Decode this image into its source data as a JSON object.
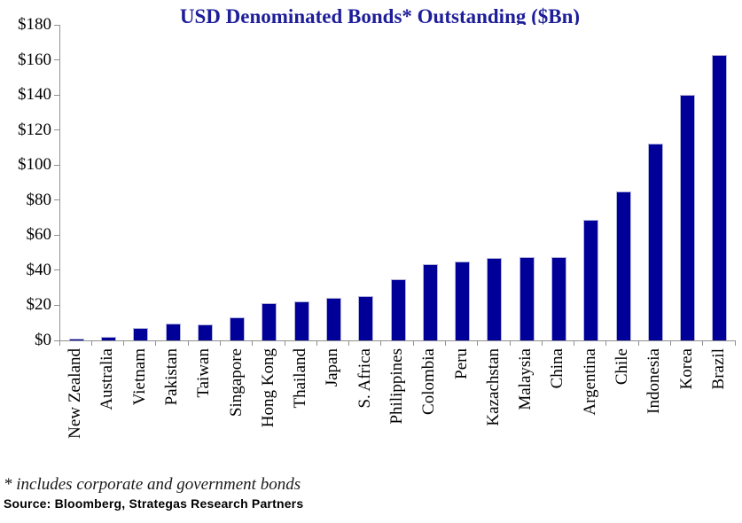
{
  "chart_data": {
    "type": "bar",
    "title": "USD Denominated Bonds* Outstanding ($Bn)",
    "categories": [
      "New Zealand",
      "Australia",
      "Vietnam",
      "Pakistan",
      "Taiwan",
      "Singapore",
      "Hong Kong",
      "Thailand",
      "Japan",
      "S. Africa",
      "Philippines",
      "Colombia",
      "Peru",
      "Kazachstan",
      "Malaysia",
      "China",
      "Argentina",
      "Chile",
      "Indonesia",
      "Korea",
      "Brazil"
    ],
    "values": [
      1,
      2,
      7,
      9.5,
      9,
      13,
      21,
      22,
      24.5,
      25.5,
      35,
      43.5,
      45,
      47,
      47.5,
      47.5,
      69,
      85,
      112,
      140,
      163
    ],
    "xlabel": "",
    "ylabel": "",
    "ylim": [
      0,
      180
    ],
    "ytick_step": 20,
    "ytick_labels": [
      "$0",
      "$20",
      "$40",
      "$60",
      "$80",
      "$100",
      "$120",
      "$140",
      "$160",
      "$180"
    ],
    "grid": false,
    "legend": "none",
    "colors": {
      "bar_fill": "#000099",
      "bar_edge": "#b4b4dc",
      "axis": "#909090",
      "title": "#1e1e99",
      "label": "#000000"
    }
  },
  "footnote": "* includes corporate and government bonds",
  "source": "Source: Bloomberg, Strategas Research Partners"
}
